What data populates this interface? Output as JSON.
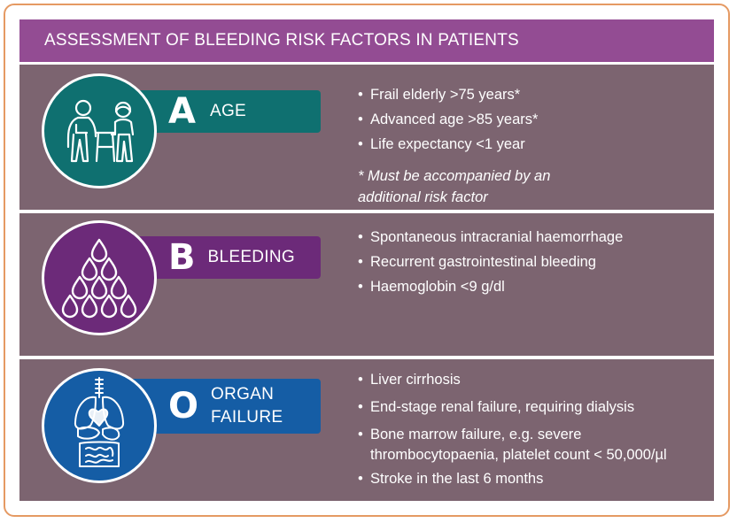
{
  "title": "ASSESSMENT OF BLEEDING RISK FACTORS IN PATIENTS",
  "colors": {
    "frame_border": "#e59a63",
    "title_bg": "#934c93",
    "panel_bg": "#7c6470",
    "teal": "#0f7070",
    "purple": "#6c2a79",
    "blue": "#155da5"
  },
  "sections": [
    {
      "letter": "A",
      "name": "AGE",
      "icon": "elderly-people-icon",
      "bullets": [
        "Frail elderly >75 years*",
        "Advanced age >85 years*",
        "Life expectancy <1 year"
      ],
      "note": "* Must be accompanied by an additional risk factor"
    },
    {
      "letter": "B",
      "name": "BLEEDING",
      "icon": "blood-drops-icon",
      "bullets": [
        "Spontaneous intracranial haemorrhage",
        "Recurrent gastrointestinal bleeding",
        "Haemoglobin <9 g/dl"
      ]
    },
    {
      "letter": "O",
      "name_line1": "ORGAN",
      "name_line2": "FAILURE",
      "icon": "internal-organs-icon",
      "bullets": [
        "Liver cirrhosis",
        "End-stage renal failure, requiring dialysis",
        "Bone marrow failure, e.g. severe",
        "thrombocytopaenia, platelet count < 50,000/µl",
        "Stroke in the last 6 months"
      ]
    }
  ]
}
